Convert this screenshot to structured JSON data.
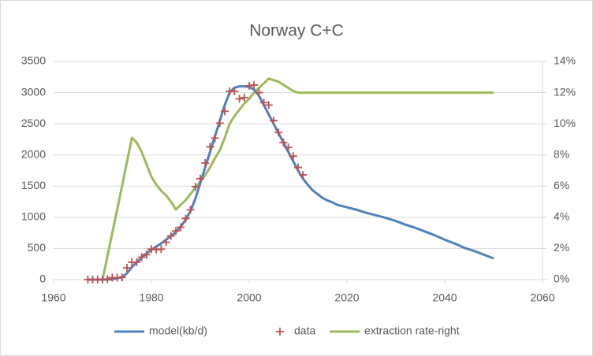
{
  "chart_data": {
    "type": "line",
    "title": "Norway C+C",
    "xlim": [
      1960,
      2060
    ],
    "xticks": [
      1960,
      1980,
      2000,
      2020,
      2040,
      2060
    ],
    "ylim": [
      0,
      3500
    ],
    "yticks": [
      0,
      500,
      1000,
      1500,
      2000,
      2500,
      3000,
      3500
    ],
    "y2lim": [
      0,
      14
    ],
    "y2ticks": [
      {
        "value": 0,
        "label": "0%"
      },
      {
        "value": 2,
        "label": "2%"
      },
      {
        "value": 4,
        "label": "4%"
      },
      {
        "value": 6,
        "label": "6%"
      },
      {
        "value": 8,
        "label": "8%"
      },
      {
        "value": 10,
        "label": "10%"
      },
      {
        "value": 12,
        "label": "12%"
      },
      {
        "value": 14,
        "label": "14%"
      }
    ],
    "grid": true,
    "legend": "bottom",
    "series": [
      {
        "name": "model(kb/d)",
        "color": "#4f81bd",
        "mark": "line",
        "x": [
          1967,
          1970,
          1972,
          1974,
          1975,
          1976,
          1977,
          1978,
          1979,
          1980,
          1981,
          1982,
          1983,
          1984,
          1985,
          1986,
          1987,
          1988,
          1989,
          1990,
          1991,
          1992,
          1993,
          1994,
          1995,
          1996,
          1997,
          1998,
          1999,
          2000,
          2001,
          2002,
          2003,
          2004,
          2005,
          2006,
          2007,
          2008,
          2009,
          2010,
          2011,
          2012,
          2013,
          2014,
          2015,
          2016,
          2017,
          2018,
          2020,
          2022,
          2024,
          2026,
          2028,
          2030,
          2032,
          2034,
          2036,
          2038,
          2040,
          2042,
          2044,
          2046,
          2048,
          2050
        ],
        "values": [
          0,
          0,
          5,
          40,
          100,
          200,
          280,
          350,
          420,
          480,
          530,
          580,
          640,
          700,
          760,
          850,
          960,
          1100,
          1300,
          1550,
          1800,
          2050,
          2300,
          2550,
          2800,
          3000,
          3080,
          3100,
          3100,
          3090,
          3050,
          2950,
          2800,
          2650,
          2500,
          2350,
          2200,
          2050,
          1900,
          1750,
          1620,
          1520,
          1430,
          1370,
          1310,
          1270,
          1240,
          1200,
          1160,
          1120,
          1070,
          1030,
          990,
          940,
          880,
          830,
          770,
          710,
          640,
          580,
          510,
          460,
          400,
          340
        ]
      },
      {
        "name": "data",
        "color": "#c0504d",
        "mark": "plus",
        "x": [
          1967,
          1968,
          1969,
          1970,
          1971,
          1972,
          1973,
          1974,
          1975,
          1976,
          1977,
          1978,
          1979,
          1980,
          1981,
          1982,
          1983,
          1984,
          1985,
          1986,
          1987,
          1988,
          1989,
          1990,
          1991,
          1992,
          1993,
          1994,
          1995,
          1996,
          1997,
          1998,
          1999,
          2000,
          2001,
          2002,
          2003,
          2004,
          2005,
          2006,
          2007,
          2008,
          2009,
          2010,
          2011
        ],
        "values": [
          0,
          0,
          0,
          0,
          6,
          32,
          32,
          35,
          190,
          280,
          280,
          360,
          400,
          490,
          480,
          490,
          600,
          700,
          780,
          840,
          980,
          1120,
          1490,
          1620,
          1870,
          2130,
          2270,
          2510,
          2700,
          3020,
          3020,
          2900,
          2920,
          3110,
          3120,
          3000,
          2840,
          2800,
          2550,
          2360,
          2200,
          2120,
          1980,
          1800,
          1680
        ]
      },
      {
        "name": "extraction rate-right",
        "color": "#9bbb59",
        "mark": "line",
        "axis": "y2",
        "x": [
          1970,
          1972,
          1974,
          1976,
          1977,
          1978,
          1979,
          1980,
          1981,
          1982,
          1983,
          1984,
          1985,
          1986,
          1987,
          1988,
          1989,
          1990,
          1991,
          1992,
          1993,
          1994,
          1995,
          1996,
          1997,
          1998,
          1999,
          2000,
          2001,
          2002,
          2003,
          2004,
          2005,
          2006,
          2007,
          2008,
          2009,
          2010,
          2011,
          2020,
          2030,
          2040,
          2050
        ],
        "values": [
          0,
          3,
          6,
          9.1,
          8.8,
          8.2,
          7.4,
          6.6,
          6.1,
          5.7,
          5.4,
          5.0,
          4.5,
          4.8,
          5.1,
          5.5,
          5.9,
          6.3,
          6.7,
          7.2,
          7.8,
          8.3,
          9.1,
          10.0,
          10.5,
          10.9,
          11.3,
          11.6,
          12.0,
          12.3,
          12.6,
          12.9,
          12.8,
          12.7,
          12.5,
          12.3,
          12.1,
          12.0,
          12.0,
          12,
          12,
          12,
          12
        ]
      }
    ]
  }
}
